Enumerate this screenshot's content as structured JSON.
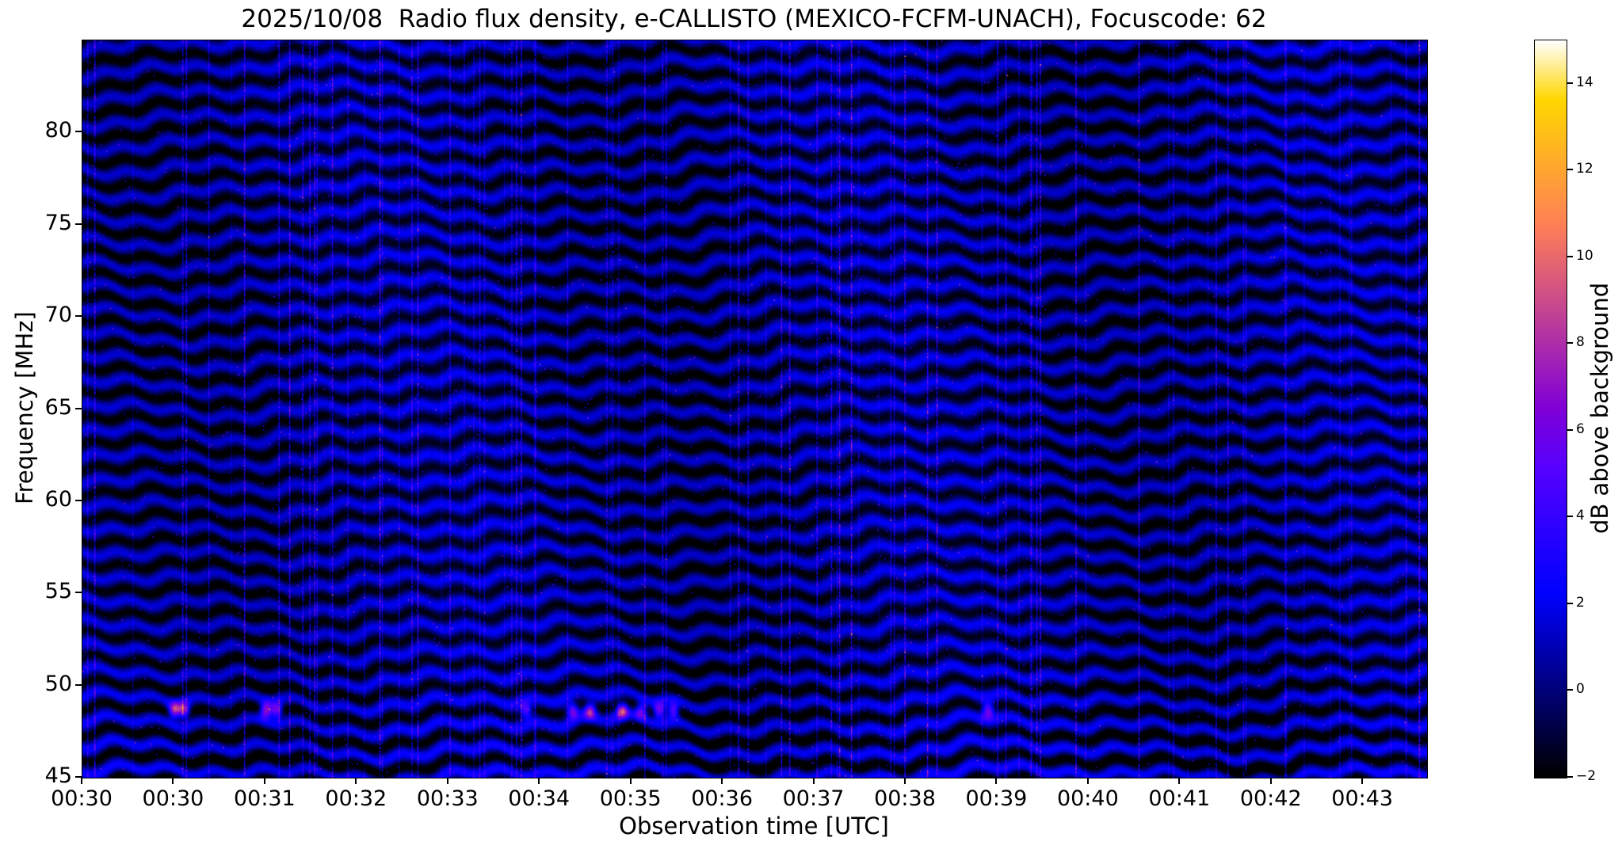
{
  "chart_data": {
    "type": "heatmap",
    "title": "2025/10/08  Radio flux density, e-CALLISTO (MEXICO-FCFM-UNACH), Focuscode: 62",
    "xlabel": "Observation time [UTC]",
    "ylabel": "Frequency [MHz]",
    "colorbar_label": "dB above background",
    "x_tick_labels": [
      "00:30",
      "00:30",
      "00:31",
      "00:32",
      "00:33",
      "00:34",
      "00:35",
      "00:36",
      "00:37",
      "00:38",
      "00:39",
      "00:40",
      "00:41",
      "00:42",
      "00:43"
    ],
    "x_span_tick_units": 14.7,
    "y_ticks": [
      45,
      50,
      55,
      60,
      65,
      70,
      75,
      80
    ],
    "y_range": [
      45,
      85
    ],
    "colorbar_ticks": [
      -2,
      0,
      2,
      4,
      6,
      8,
      10,
      12,
      14
    ],
    "value_range": [
      -2,
      15
    ],
    "colormap": "gnuplot2",
    "grid": false,
    "legend": "none",
    "content_summary": "Radio spectrogram: dark-blue background with wavy horizontal interference fringes spaced about 1.3 MHz, thin pink vertical RFI streaks scattered in time, and bright pink emission blobs near 48.7 MHz around 00:31, 00:35-00:36 and 00:40.",
    "synth": {
      "seed": 42,
      "band_spacing_mhz": 1.32,
      "band_amplitude_db": 1.9,
      "base_level_db": -0.1,
      "noise_db": 0.35,
      "wobble_strength": 2.4,
      "streak_count": 95,
      "streak_max_db": 7,
      "speckle_count": 2200,
      "blob_freq_mhz": 48.7,
      "blob_times_min": [
        1.0,
        1.1,
        2.0,
        2.12,
        4.85,
        5.35,
        5.55,
        5.9,
        6.1,
        6.3,
        6.45,
        9.9
      ],
      "blob_intensities_db": [
        9,
        8,
        9.5,
        8,
        6.5,
        7.5,
        8.5,
        9,
        7,
        8,
        7.5,
        7.5
      ]
    }
  }
}
